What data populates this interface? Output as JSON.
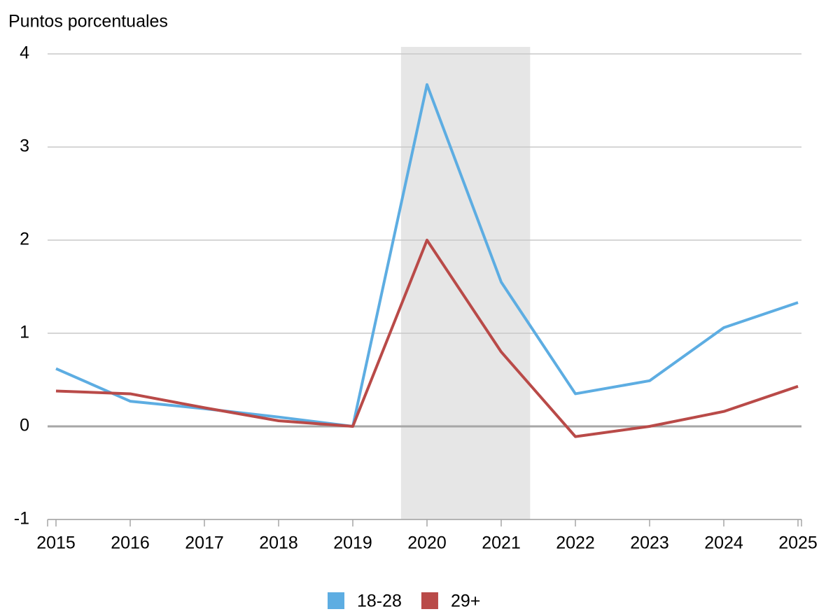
{
  "chart_data": {
    "type": "line",
    "y_axis_label": "Puntos porcentuales",
    "x": [
      2015,
      2016,
      2017,
      2018,
      2019,
      2020,
      2021,
      2022,
      2023,
      2024,
      2025
    ],
    "series": [
      {
        "name": "18-28",
        "color": "#5dade2",
        "values": [
          0.62,
          0.27,
          0.19,
          0.1,
          0,
          3.67,
          1.55,
          0.35,
          0.49,
          1.06,
          1.33
        ]
      },
      {
        "name": "29+",
        "color": "#b94a48",
        "values": [
          0.38,
          0.35,
          0.2,
          0.06,
          0,
          2.0,
          0.8,
          -0.11,
          0,
          0.16,
          0.43
        ]
      }
    ],
    "shaded_span": {
      "x": [
        2019.65,
        2021.39
      ],
      "color": "#e6e6e6"
    },
    "xlim": [
      2015,
      2025
    ],
    "xticks": [
      2015,
      2016,
      2017,
      2018,
      2019,
      2020,
      2021,
      2022,
      2023,
      2024,
      2025
    ],
    "ylim": [
      -1,
      4
    ],
    "yticks": [
      -1,
      0,
      1,
      2,
      3,
      4
    ],
    "grid": true,
    "legend": "bottom"
  }
}
